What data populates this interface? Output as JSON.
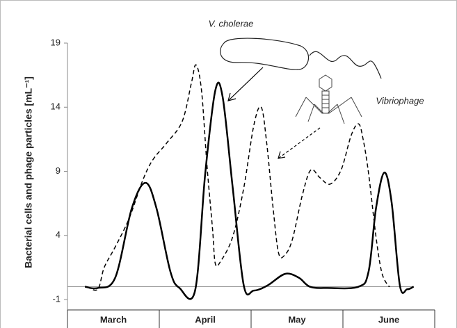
{
  "chart_data": {
    "type": "line",
    "y_label": "Bacterial cells and phage particles [mL⁻¹]",
    "categories": [
      "March",
      "April",
      "May",
      "June"
    ],
    "xlim": [
      0,
      4
    ],
    "ylim": [
      -1,
      19
    ],
    "yticks": [
      -1,
      4,
      9,
      14,
      19
    ],
    "reference_line": 0,
    "series": [
      {
        "name": "V. cholerae",
        "color": "#000000",
        "dash": false,
        "x": [
          0.19,
          0.33,
          0.52,
          0.7,
          0.85,
          0.97,
          1.12,
          1.22,
          1.39,
          1.5,
          1.61,
          1.69,
          1.8,
          1.92,
          2.03,
          2.18,
          2.37,
          2.52,
          2.64,
          2.83,
          3.17,
          3.28,
          3.36,
          3.45,
          3.53,
          3.62,
          3.7,
          3.77
        ],
        "values": [
          0,
          -0.1,
          0.7,
          6.1,
          8.1,
          6.1,
          1.2,
          -0.1,
          -0.3,
          8.8,
          15.3,
          14.8,
          7.7,
          0.1,
          -0.3,
          0.1,
          1.0,
          0.7,
          0,
          -0.1,
          0,
          1.2,
          6.1,
          8.9,
          6.6,
          0.1,
          -0.2,
          0
        ]
      },
      {
        "name": "Vibriophage",
        "color": "#000000",
        "dash": true,
        "x": [
          0.21,
          0.33,
          0.4,
          0.52,
          0.67,
          0.82,
          0.93,
          1.08,
          1.25,
          1.35,
          1.4,
          1.46,
          1.52,
          1.58,
          1.61,
          1.67,
          1.8,
          1.92,
          2.03,
          2.11,
          2.17,
          2.24,
          2.3,
          2.37,
          2.45,
          2.56,
          2.65,
          2.75,
          2.86,
          2.98,
          3.09,
          3.17,
          3.22,
          3.28,
          3.36,
          3.42,
          3.48,
          3.51
        ],
        "values": [
          0,
          -0.2,
          1.5,
          3.1,
          5.3,
          8.3,
          9.9,
          11.2,
          12.9,
          15.9,
          17.3,
          15.3,
          9.4,
          4.5,
          1.8,
          2.0,
          3.9,
          7.7,
          12.6,
          14.0,
          11.2,
          6.1,
          2.6,
          2.5,
          3.7,
          7.2,
          9.1,
          8.5,
          8.0,
          9.1,
          11.8,
          12.7,
          11.5,
          8.8,
          3.9,
          1.2,
          0.2,
          0
        ]
      }
    ]
  }
}
